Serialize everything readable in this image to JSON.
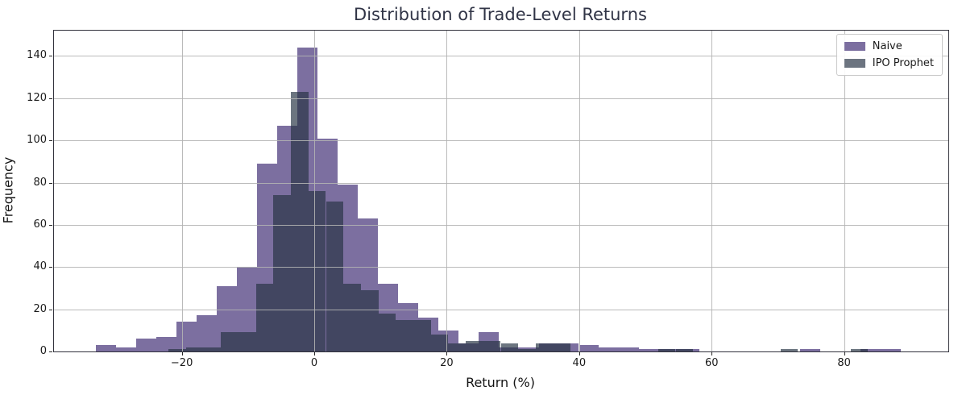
{
  "title": "Distribution of Trade-Level Returns",
  "xlabel": "Return (%)",
  "ylabel": "Frequency",
  "legend": {
    "position": "upper right",
    "items": [
      {
        "label": "Naive",
        "swatch_color": "#7C6FA0"
      },
      {
        "label": "IPO Prophet",
        "swatch_color": "#6C7480"
      }
    ]
  },
  "axes": {
    "x_ticks": [
      -20,
      0,
      20,
      40,
      60,
      80
    ],
    "y_ticks": [
      0,
      20,
      40,
      60,
      80,
      100,
      120,
      140
    ],
    "x_range": [
      -39.3,
      95.74
    ],
    "y_range": [
      0,
      152
    ],
    "grid": true,
    "tick_color": "#262626",
    "grid_color": "#b2b2b2",
    "spine_color": "#31313b"
  },
  "colors": {
    "naive_fill": "rgba(73,55,123,0.72)",
    "ipo_prophet_fill": "rgba(39,51,68,0.68)",
    "overlap_appearance": "#444C5E",
    "title_color": "#303446",
    "background": "#ffffff"
  },
  "chart_data": {
    "type": "histogram",
    "title": "Distribution of Trade-Level Returns",
    "xlabel": "Return (%)",
    "ylabel": "Frequency",
    "xlim": [
      -39.3,
      95.74
    ],
    "ylim": [
      0,
      152
    ],
    "grid": true,
    "grid_above_bars": true,
    "legend_position": "upper right",
    "series": [
      {
        "name": "Naive",
        "fill": "rgba(73,55,123,0.72)",
        "bin_start": -33.0,
        "bin_width": 3.04,
        "counts": [
          3,
          2,
          6,
          7,
          14,
          17,
          31,
          40,
          89,
          107,
          144,
          101,
          79,
          63,
          32,
          23,
          16,
          10,
          4,
          9,
          2,
          2,
          4,
          4,
          3,
          2,
          2,
          1,
          1,
          1,
          0,
          0,
          0,
          0,
          0,
          1,
          0,
          0,
          1,
          1
        ]
      },
      {
        "name": "IPO Prophet",
        "fill": "rgba(39,51,68,0.68)",
        "bin_start": -22.0,
        "bin_width": 2.64,
        "counts": [
          1,
          2,
          2,
          9,
          9,
          32,
          74,
          123,
          76,
          71,
          32,
          29,
          18,
          15,
          15,
          8,
          4,
          5,
          5,
          4,
          1,
          4,
          4,
          0,
          0,
          0,
          0,
          0,
          1,
          1,
          0,
          0,
          0,
          0,
          0,
          1,
          0,
          0,
          0,
          1
        ]
      }
    ]
  }
}
